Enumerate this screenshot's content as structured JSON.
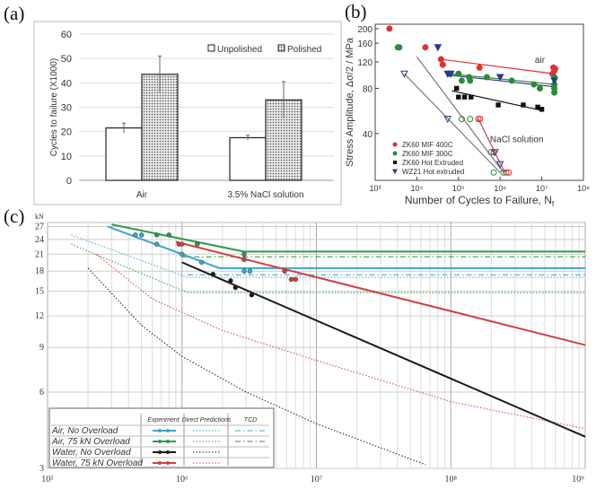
{
  "panels": {
    "a": "(a)",
    "b": "(b)",
    "c": "(c)"
  },
  "chart_data": [
    {
      "type": "bar",
      "panel": "(a)",
      "categories": [
        "Air",
        "3.5% NaCl solution"
      ],
      "series": [
        {
          "name": "Unpolished",
          "values": [
            21.5,
            17.5
          ],
          "errors": [
            2,
            1
          ],
          "pattern": "white"
        },
        {
          "name": "Polished",
          "values": [
            43.5,
            33
          ],
          "errors": [
            7.5,
            7.5
          ],
          "pattern": "dotted"
        }
      ],
      "xlabel": "",
      "ylabel": "Cycles to failure (X1000)",
      "ylim": [
        0,
        60
      ],
      "yticks": [
        0,
        10,
        20,
        30,
        40,
        50,
        60
      ],
      "grid": true,
      "legend": "top-right"
    },
    {
      "type": "scatter",
      "panel": "(b)",
      "xscale": "log",
      "yscale": "log",
      "xlabel": "Number of Cycles to Failure, N",
      "xlabel_sub": "f",
      "ylabel": "Stress Amplitude, Δσ/2 / MPa",
      "xlim": [
        1000,
        100000000
      ],
      "ylim": [
        19.5,
        214
      ],
      "xticks": [
        1000,
        10000,
        100000,
        1000000,
        10000000,
        100000000
      ],
      "xtick_labels": [
        "10³",
        "10⁴",
        "10⁵",
        "10⁶",
        "10⁷",
        "10⁸"
      ],
      "yticks": [
        40,
        80,
        120,
        160,
        200
      ],
      "legend": "bottom-left",
      "annotations": [
        {
          "text": "air",
          "x": 9000000,
          "y": 118
        },
        {
          "text": "NaCl solution",
          "x": 2500000,
          "y": 35
        }
      ],
      "series": [
        {
          "name": "ZK60 MIF 400C",
          "color": "#e03030",
          "marker": "circle",
          "points": [
            [
              2200,
              200
            ],
            [
              16000,
              150
            ],
            [
              38000,
              125
            ],
            [
              42000,
              115
            ],
            [
              320000,
              110
            ],
            [
              18000000,
              100
            ],
            [
              19000000,
              110
            ],
            [
              20000000,
              105
            ],
            [
              21000000,
              108
            ]
          ],
          "open_points": [
            [
              300000,
              50
            ],
            [
              330000,
              50
            ],
            [
              700000,
              30
            ],
            [
              1400000,
              22
            ],
            [
              1600000,
              22
            ]
          ]
        },
        {
          "name": "ZK60 MIF 300C",
          "color": "#2a8a3a",
          "marker": "circle",
          "points": [
            [
              3500,
              150
            ],
            [
              3800,
              150
            ],
            [
              60000,
              100
            ],
            [
              100000,
              100
            ],
            [
              120000,
              90
            ],
            [
              180000,
              95
            ],
            [
              190000,
              90
            ],
            [
              480000,
              95
            ],
            [
              1900000,
              90
            ],
            [
              6500000,
              85
            ],
            [
              9000000,
              80
            ],
            [
              20000000,
              95
            ],
            [
              20000000,
              85
            ],
            [
              20000000,
              80
            ],
            [
              20000000,
              75
            ]
          ],
          "open_points": [
            [
              120000,
              50
            ],
            [
              190000,
              50
            ],
            [
              600000,
              30
            ],
            [
              700000,
              22
            ],
            [
              1200000,
              22
            ]
          ]
        },
        {
          "name": "ZK60 Hot Extruded",
          "color": "#111111",
          "marker": "square",
          "points": [
            [
              90000,
              80
            ],
            [
              100000,
              70
            ],
            [
              140000,
              70
            ],
            [
              200000,
              70
            ],
            [
              900000,
              62
            ],
            [
              3600000,
              62
            ],
            [
              8000000,
              60
            ],
            [
              10000000,
              58
            ]
          ],
          "open_points": []
        },
        {
          "name": "WZ21 Hot extruded",
          "color": "#2a3a8a",
          "marker": "triangle",
          "points": [
            [
              32000,
              150
            ],
            [
              55000,
              100
            ],
            [
              65000,
              100
            ],
            [
              1000000,
              95
            ],
            [
              20000000,
              90
            ]
          ],
          "open_points": [
            [
              5000,
              100
            ],
            [
              55000,
              50
            ],
            [
              750000,
              30
            ],
            [
              1000000,
              25
            ]
          ]
        }
      ],
      "fit_lines": [
        {
          "color": "#e03030",
          "points": [
            [
              38000,
              125
            ],
            [
              20000000,
              100
            ]
          ]
        },
        {
          "color": "#2a8a3a",
          "points": [
            [
              60000,
              100
            ],
            [
              20000000,
              85
            ]
          ]
        },
        {
          "color": "#2a3a8a",
          "points": [
            [
              60000,
              98
            ],
            [
              20000000,
              82
            ]
          ]
        },
        {
          "color": "#111111",
          "points": [
            [
              70000,
              77
            ],
            [
              10000000,
              57
            ]
          ]
        },
        {
          "color": "#777777",
          "points": [
            [
              10000,
              130
            ],
            [
              1200000,
              22
            ]
          ]
        },
        {
          "color": "#777777",
          "points": [
            [
              5000,
              100
            ],
            [
              1000000,
              22
            ]
          ]
        },
        {
          "color": "#c04050",
          "points": [
            [
              300000,
              50
            ],
            [
              1300000,
              22
            ]
          ]
        }
      ]
    },
    {
      "type": "line",
      "panel": "(c)",
      "xscale": "log",
      "yscale": "log",
      "ylabel": "kN",
      "xlim": [
        100000,
        1000000000
      ],
      "ylim": [
        3,
        28
      ],
      "xticks": [
        100000,
        1000000,
        10000000,
        100000000,
        1000000000
      ],
      "xtick_labels": [
        "10⁵",
        "10⁶",
        "10⁷",
        "10⁸",
        "10⁹"
      ],
      "yticks": [
        3,
        6,
        9,
        12,
        15,
        18,
        21,
        24,
        27
      ],
      "grid": true,
      "legend": "bottom-left",
      "legend_headers": [
        "Experiment",
        "Direct Predictions",
        "TCD"
      ],
      "series": [
        {
          "name": "Air, No Overload",
          "color": "#3aa8c8",
          "experiment": [
            [
              280000,
              27
            ],
            [
              1900000,
              18.5
            ],
            [
              1000000000,
              18.5
            ]
          ],
          "points": [
            [
              450000,
              25
            ],
            [
              500000,
              25
            ],
            [
              650000,
              23
            ],
            [
              1000000,
              21
            ],
            [
              1400000,
              19.5
            ],
            [
              2900000,
              18
            ],
            [
              3200000,
              18
            ]
          ],
          "direct": [
            [
              150000,
              25
            ],
            [
              1100000,
              17
            ],
            [
              1000000000,
              17
            ]
          ],
          "tcd": [
            [
              1100000,
              17.4
            ],
            [
              1000000000,
              17.4
            ]
          ],
          "has_tcd": true
        },
        {
          "name": "Air, 75 kN Overload",
          "color": "#2e9a4a",
          "experiment": [
            [
              300000,
              27.5
            ],
            [
              2900000,
              21.5
            ],
            [
              1000000000,
              21.5
            ]
          ],
          "points": [
            [
              650000,
              25
            ],
            [
              800000,
              25
            ],
            [
              1300000,
              23
            ],
            [
              2900000,
              21
            ]
          ],
          "direct": [
            [
              150000,
              23
            ],
            [
              1100000,
              14.8
            ],
            [
              1000000000,
              14.8
            ]
          ],
          "tcd": [
            [
              1000000,
              20.5
            ],
            [
              1000000000,
              20.5
            ]
          ],
          "has_tcd": true
        },
        {
          "name": "Water, No Overload",
          "color": "#1a1a1a",
          "experiment": [
            [
              1000000,
              19.5
            ],
            [
              1000000000,
              4
            ]
          ],
          "points": [
            [
              1700000,
              17.5
            ],
            [
              2300000,
              16.5
            ],
            [
              2500000,
              15.5
            ],
            [
              3300000,
              14.5
            ]
          ],
          "direct": [
            [
              200000,
              18.5
            ],
            [
              500000,
              11
            ],
            [
              1000000,
              8.3
            ],
            [
              3000000,
              6
            ],
            [
              10000000,
              4.5
            ],
            [
              65000000,
              3.1
            ]
          ],
          "has_tcd": false
        },
        {
          "name": "Water, 75 kN Overload",
          "color": "#d04040",
          "experiment": [
            [
              900000,
              23.5
            ],
            [
              1000000000,
              9.2
            ]
          ],
          "points": [
            [
              950000,
              23
            ],
            [
              1000000,
              23
            ],
            [
              2900000,
              20
            ],
            [
              5800000,
              18
            ],
            [
              6500000,
              16.7
            ],
            [
              7000000,
              16.7
            ]
          ],
          "direct": [
            [
              230000,
              21
            ],
            [
              600000,
              14
            ],
            [
              2000000,
              10.5
            ],
            [
              10000000,
              8
            ],
            [
              100000000,
              5.5
            ],
            [
              1000000000,
              4.3
            ]
          ],
          "has_tcd": false
        }
      ]
    }
  ]
}
